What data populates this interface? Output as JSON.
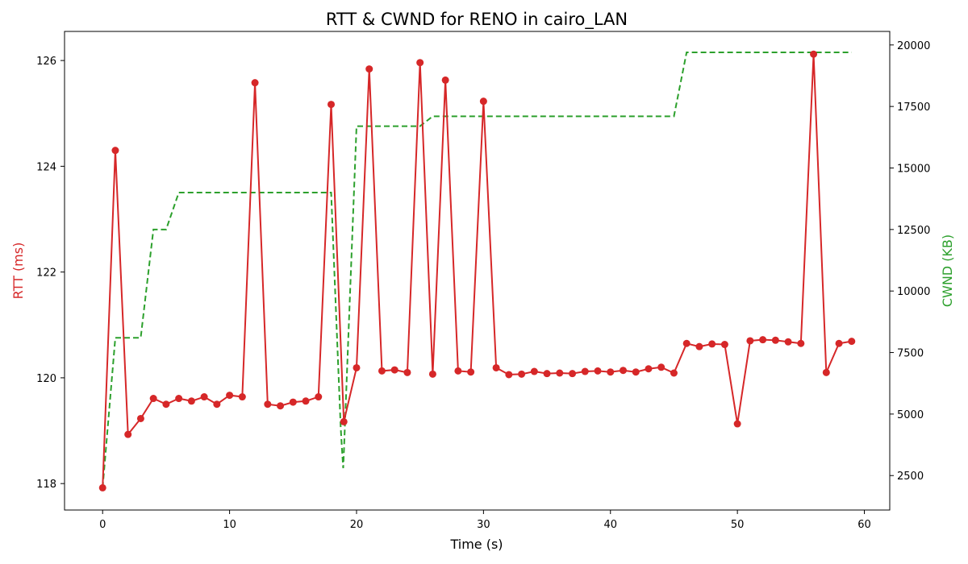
{
  "chart_data": {
    "type": "line",
    "title": "RTT & CWND for RENO in cairo_LAN",
    "xlabel": "Time (s)",
    "ylabel_left": "RTT (ms)",
    "ylabel_right": "CWND (KB)",
    "xlim": [
      -3,
      62
    ],
    "ylim_left": [
      117.5,
      126.55
    ],
    "ylim_right": [
      1100,
      20550
    ],
    "x_ticks": [
      0,
      10,
      20,
      30,
      40,
      50,
      60
    ],
    "y_left_ticks": [
      118,
      120,
      122,
      124,
      126
    ],
    "y_right_ticks": [
      2500,
      5000,
      7500,
      10000,
      12500,
      15000,
      17500,
      20000
    ],
    "grid": false,
    "colors": {
      "rtt": "#d62728",
      "cwnd": "#2ca02c"
    },
    "series": [
      {
        "axis": "left",
        "style": "solid-markers",
        "x": [
          0,
          1,
          2,
          3,
          4,
          5,
          6,
          7,
          8,
          9,
          10,
          11,
          12,
          13,
          14,
          15,
          16,
          17,
          18,
          19,
          20,
          21,
          22,
          23,
          24,
          25,
          26,
          27,
          28,
          29,
          30,
          31,
          32,
          33,
          34,
          35,
          36,
          37,
          38,
          39,
          40,
          41,
          42,
          43,
          44,
          45,
          46,
          47,
          48,
          49,
          50,
          51,
          52,
          53,
          54,
          55,
          56,
          57,
          58,
          59
        ],
        "values": [
          117.92,
          124.3,
          118.93,
          119.23,
          119.61,
          119.5,
          119.61,
          119.56,
          119.64,
          119.5,
          119.67,
          119.64,
          125.58,
          119.5,
          119.47,
          119.54,
          119.56,
          119.64,
          125.17,
          119.17,
          120.19,
          125.84,
          120.13,
          120.15,
          120.1,
          125.96,
          120.07,
          125.63,
          120.13,
          120.11,
          125.23,
          120.19,
          120.06,
          120.07,
          120.12,
          120.08,
          120.09,
          120.08,
          120.12,
          120.13,
          120.11,
          120.14,
          120.11,
          120.17,
          120.2,
          120.09,
          120.65,
          120.59,
          120.64,
          120.63,
          119.13,
          120.7,
          120.72,
          120.71,
          120.68,
          120.65,
          126.12,
          120.1,
          120.65,
          120.69
        ]
      },
      {
        "axis": "right",
        "style": "dashed",
        "x": [
          0,
          1,
          2,
          3,
          4,
          5,
          6,
          7,
          8,
          9,
          10,
          11,
          12,
          13,
          14,
          15,
          16,
          17,
          18,
          18.75,
          18.85,
          18.95,
          19,
          20,
          21,
          22,
          23,
          24,
          25,
          26,
          27,
          28,
          29,
          30,
          31,
          32,
          33,
          34,
          35,
          36,
          37,
          38,
          39,
          40,
          41,
          42,
          43,
          44,
          45,
          46,
          47,
          48,
          49,
          50,
          51,
          52,
          53,
          54,
          55,
          56,
          57,
          58,
          59
        ],
        "values": [
          2000,
          8100,
          8100,
          8100,
          12500,
          12500,
          14000,
          14000,
          14000,
          14000,
          14000,
          14000,
          14000,
          14000,
          14000,
          14000,
          14000,
          14000,
          14000,
          4500,
          3600,
          2800,
          3400,
          16700,
          16700,
          16700,
          16700,
          16700,
          16700,
          17100,
          17100,
          17100,
          17100,
          17100,
          17100,
          17100,
          17100,
          17100,
          17100,
          17100,
          17100,
          17100,
          17100,
          17100,
          17100,
          17100,
          17100,
          17100,
          17100,
          19700,
          19700,
          19700,
          19700,
          19700,
          19700,
          19700,
          19700,
          19700,
          19700,
          19700,
          19700,
          19700,
          19700
        ]
      }
    ]
  }
}
